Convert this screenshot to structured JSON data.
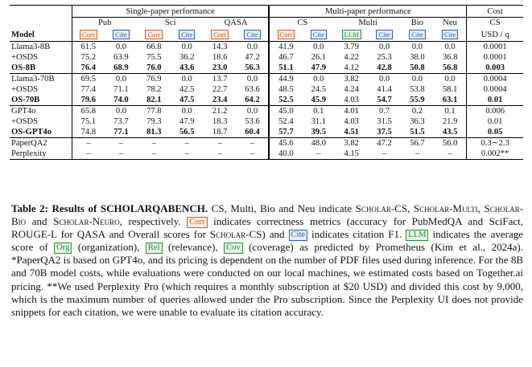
{
  "table": {
    "group_headers": {
      "single": "Single-paper performance",
      "multi": "Multi-paper performance",
      "cost": "Cost"
    },
    "dataset_headers": {
      "pub": "Pub",
      "sci": "Sci",
      "qasa": "QASA",
      "cs": "CS",
      "multi": "Multi",
      "bio": "Bio",
      "neu": "Neu",
      "cost_cs": "CS"
    },
    "tags": {
      "corr": "Corr",
      "cite": "Cite",
      "llm": "LLM"
    },
    "model_header": "Model",
    "cost_unit": "USD / q",
    "blocks": [
      [
        {
          "name": "Llama3-8B",
          "vals": [
            "61.5",
            "0.0",
            "66.8",
            "0.0",
            "14.3",
            "0.0",
            "41.9",
            "0.0",
            "3.79",
            "0.0",
            "0.0",
            "0.0",
            "0.0001"
          ],
          "bold": false
        },
        {
          "name": "+OSDS",
          "vals": [
            "75.2",
            "63.9",
            "75.5",
            "36.2",
            "18.6",
            "47.2",
            "46.7",
            "26.1",
            "4.22",
            "25.3",
            "38.0",
            "36.8",
            "0.0001"
          ],
          "bold": false
        },
        {
          "name": "OS-8B",
          "vals": [
            "76.4",
            "68.9",
            "76.0",
            "43.6",
            "23.0",
            "56.3",
            "51.1",
            "47.9",
            "4.12",
            "42.8",
            "50.8",
            "56.8",
            "0.003"
          ],
          "bold": true
        }
      ],
      [
        {
          "name": "Llama3-70B",
          "vals": [
            "69.5",
            "0.0",
            "76.9",
            "0.0",
            "13.7",
            "0.0",
            "44.9",
            "0.0",
            "3.82",
            "0.0",
            "0.0",
            "0.0",
            "0.0004"
          ],
          "bold": false
        },
        {
          "name": "+OSDS",
          "vals": [
            "77.4",
            "71.1",
            "78.2",
            "42.5",
            "22.7",
            "63.6",
            "48.5",
            "24.5",
            "4.24",
            "41.4",
            "53.8",
            "58.1",
            "0.0004"
          ],
          "bold": false
        },
        {
          "name": "OS-70B",
          "vals": [
            "79.6",
            "74.0",
            "82.1",
            "47.5",
            "23.4",
            "64.2",
            "52.5",
            "45.9",
            "4.03",
            "54.7",
            "55.9",
            "63.1",
            "0.01"
          ],
          "bold": true
        }
      ],
      [
        {
          "name": "GPT4o",
          "vals": [
            "65.8",
            "0.0",
            "77.8",
            "0.0",
            "21.2",
            "0.0",
            "45.0",
            "0.1",
            "4.01",
            "0.7",
            "0.2",
            "0.1",
            "0.006"
          ],
          "bold": false
        },
        {
          "name": "+OSDS",
          "vals": [
            "75.1",
            "73.7",
            "79.3",
            "47.9",
            "18.3",
            "53.6",
            "52.4",
            "31.1",
            "4.03",
            "31.5",
            "36.3",
            "21.9",
            "0.01"
          ],
          "bold": false
        },
        {
          "name": "OS-GPT4o",
          "vals": [
            "74.8",
            "77.1",
            "81.3",
            "56.5",
            "18.7",
            "60.4",
            "57.7",
            "39.5",
            "4.51",
            "37.5",
            "51.5",
            "43.5",
            "0.05"
          ],
          "bold": true
        }
      ],
      [
        {
          "name": "PaperQA2",
          "vals": [
            "–",
            "–",
            "–",
            "–",
            "–",
            "–",
            "45.6",
            "48.0",
            "3.82",
            "47.2",
            "56.7",
            "56.0",
            "0.3∼2.3"
          ],
          "bold": false
        },
        {
          "name": "Perplexity",
          "vals": [
            "–",
            "–",
            "–",
            "–",
            "–",
            "–",
            "40.0",
            "–",
            "4.15",
            "–",
            "–",
            "–",
            "0.002**"
          ],
          "bold": false
        }
      ]
    ]
  },
  "caption": {
    "label": "Table 2:",
    "title": "Results of SCHOLARQABENCH.",
    "p1": " CS, Multi, Bio and Neu indicate ",
    "sc_cs": "Scholar-CS",
    "comma1": ", ",
    "sc_multi": "Scholar-Multi",
    "comma2": ", ",
    "sc_bio": "Scholar-Bio",
    "and": " and ",
    "sc_neuro": "Scholar-Neuro",
    "p2": ", respectively. ",
    "corr": "Corr",
    "p3": " indicates correctness metrics (accuracy for PubMedQA and SciFact, ROUGE-L for QASA and Overall scores for ",
    "sc_cs2": "Scholar-CS",
    "p4": ") and ",
    "cite": "Cite",
    "p5": " indicates citation F1. ",
    "llm": "LLM",
    "p6": " indicates the average score of ",
    "org": "Org",
    "p7": " (organization), ",
    "rel": "Rel",
    "p8": " (relevance), ",
    "cov": "Cov",
    "p9": " (coverage) as predicted by Prometheus (Kim et al., 2024a). *PaperQA2 is based on GPT4o, and its pricing is dependent on the number of PDF files used during inference. For the 8B and 70B model costs, while evaluations were conducted on our local machines, we estimated costs based on Together.ai pricing. **We used Perplexity Pro (which requires a monthly subscription at $20 USD) and divided this cost by 9,000, which is the maximum number of queries allowed under the Pro subscription. Since the Perplexity UI does not provide snippets for each citation, we were unable to evaluate its citation accuracy."
  }
}
